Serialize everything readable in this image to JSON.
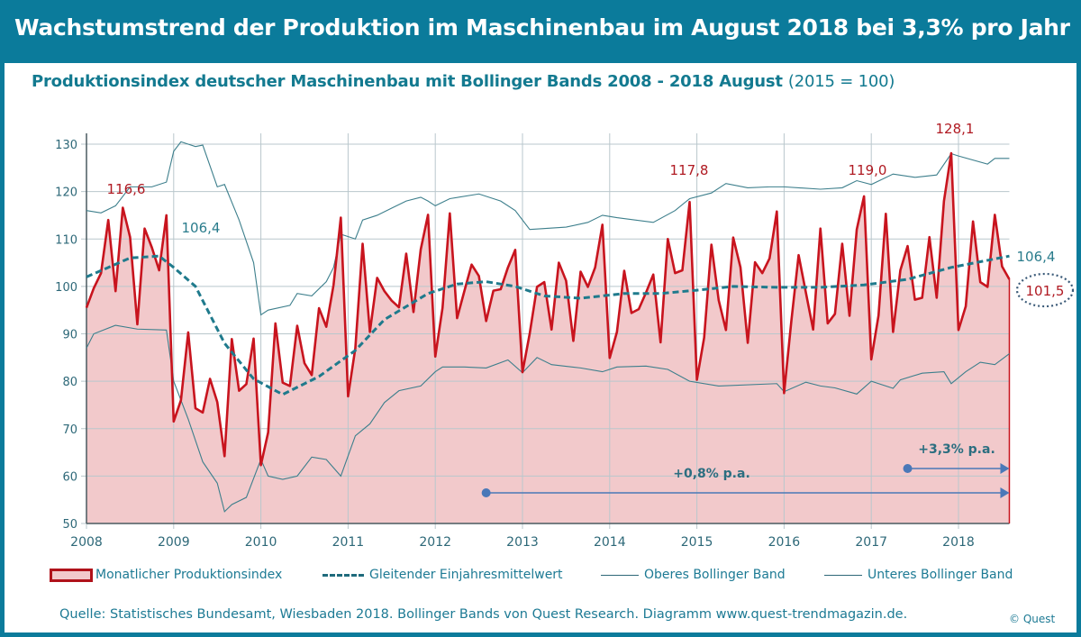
{
  "title": "Wachstumstrend der Produktion im Maschinenbau im August 2018 bei 3,3% pro Jahr",
  "subtitle": "Produktionsindex deutscher Maschinenbau mit Bollinger Bands 2008 - 2018 August",
  "subtitle_base": "(2015 = 100)",
  "source": "Quelle: Statistisches Bundesamt, Wiesbaden 2018. Bollinger Bands von Quest Research. Diagramm www.quest-trendmagazin.de.",
  "copyright": "© Quest",
  "colors": {
    "frame": "#0b7b9b",
    "index_line": "#c8141e",
    "index_fill": "#f2c9cb",
    "moving_average": "#1f7a8c",
    "bands": "#3d7f8c",
    "trend_arrow": "#4a78b8",
    "grid": "#b9c7cc"
  },
  "chart_data": {
    "type": "line",
    "title": "Produktionsindex deutscher Maschinenbau mit Bollinger Bands 2008 - 2018 August (2015 = 100)",
    "x_ticks": [
      "2008",
      "2009",
      "2010",
      "2011",
      "2012",
      "2013",
      "2014",
      "2015",
      "2016",
      "2017",
      "2018"
    ],
    "y_ticks": [
      50,
      60,
      70,
      80,
      90,
      100,
      110,
      120,
      130
    ],
    "ylim": [
      50,
      130
    ],
    "xlim": [
      "2008-01",
      "2018-08"
    ],
    "grid": true,
    "legend_placement": "bottom",
    "series": [
      {
        "name": "Monatlicher Produktionsindex",
        "style": "area-line",
        "start": "2008-01",
        "frequency": "monthly",
        "values": [
          95.5,
          99.6,
          102.8,
          114,
          99,
          116.6,
          110.4,
          92,
          112.2,
          108.2,
          103.4,
          115,
          71.5,
          76,
          90.3,
          74.3,
          73.4,
          80.5,
          75.6,
          64.2,
          88.9,
          78,
          79.4,
          89,
          62.3,
          69.2,
          92.2,
          79.7,
          79,
          91.7,
          83.8,
          81.3,
          95.4,
          91.5,
          100.3,
          114.5,
          76.8,
          87,
          109,
          90.4,
          101.8,
          99,
          97,
          95.6,
          106.9,
          94.6,
          107.8,
          115.1,
          85.2,
          95.5,
          115.4,
          93.3,
          99,
          104.6,
          102.2,
          92.7,
          99.1,
          99.4,
          104,
          107.7,
          81.9,
          90.1,
          99.9,
          100.9,
          90.9,
          105,
          101.2,
          88.5,
          103.1,
          99.9,
          104,
          113,
          84.9,
          90.4,
          103.3,
          94.4,
          95.2,
          98.7,
          102.5,
          88.2,
          110,
          102.8,
          103.4,
          117.8,
          80.3,
          89.2,
          108.8,
          97.1,
          90.8,
          110.3,
          104,
          88.1,
          105.1,
          102.8,
          105.9,
          115.8,
          77.5,
          92.7,
          106.6,
          98.7,
          90.9,
          112.2,
          92.2,
          94.2,
          109,
          93.8,
          112,
          119.0,
          84.6,
          93.9,
          115.3,
          90.4,
          103.4,
          108.5,
          97.2,
          97.6,
          110.4,
          97.6,
          118,
          128.1,
          90.8,
          95.8,
          113.7,
          100.9,
          99.9,
          115.1,
          104.2,
          101.5
        ]
      },
      {
        "name": "Gleitender Einjahresmittelwert",
        "style": "dashed",
        "points": [
          [
            "2008-01",
            102
          ],
          [
            "2008-04",
            104
          ],
          [
            "2008-07",
            106
          ],
          [
            "2008-11",
            106.4
          ],
          [
            "2009-01",
            104
          ],
          [
            "2009-04",
            100
          ],
          [
            "2009-08",
            88
          ],
          [
            "2009-12",
            80.5
          ],
          [
            "2010-04",
            77.2
          ],
          [
            "2010-09",
            81
          ],
          [
            "2011-02",
            86.5
          ],
          [
            "2011-06",
            93
          ],
          [
            "2011-12",
            98.5
          ],
          [
            "2012-04",
            100.5
          ],
          [
            "2012-08",
            101
          ],
          [
            "2012-12",
            100
          ],
          [
            "2013-04",
            98
          ],
          [
            "2013-09",
            97.5
          ],
          [
            "2014-03",
            98.5
          ],
          [
            "2014-08",
            98.5
          ],
          [
            "2015-01",
            99.2
          ],
          [
            "2015-06",
            100
          ],
          [
            "2015-12",
            99.8
          ],
          [
            "2016-06",
            99.8
          ],
          [
            "2016-12",
            100.3
          ],
          [
            "2017-06",
            101.5
          ],
          [
            "2017-12",
            104
          ],
          [
            "2018-05",
            105.5
          ],
          [
            "2018-08",
            106.4
          ]
        ]
      },
      {
        "name": "Oberes Bollinger Band",
        "style": "thin",
        "points": [
          [
            "2008-01",
            116
          ],
          [
            "2008-03",
            115.5
          ],
          [
            "2008-05",
            117
          ],
          [
            "2008-07",
            121
          ],
          [
            "2008-10",
            121
          ],
          [
            "2008-12",
            122
          ],
          [
            "2009-01",
            128.5
          ],
          [
            "2009-02",
            130.5
          ],
          [
            "2009-04",
            129.5
          ],
          [
            "2009-05",
            129.8
          ],
          [
            "2009-07",
            121
          ],
          [
            "2009-08",
            121.5
          ],
          [
            "2009-10",
            114
          ],
          [
            "2009-12",
            105
          ],
          [
            "2010-01",
            94
          ],
          [
            "2010-02",
            95
          ],
          [
            "2010-05",
            96
          ],
          [
            "2010-06",
            98.5
          ],
          [
            "2010-08",
            98
          ],
          [
            "2010-10",
            101
          ],
          [
            "2010-11",
            104
          ],
          [
            "2010-12",
            111
          ],
          [
            "2011-02",
            110
          ],
          [
            "2011-03",
            114
          ],
          [
            "2011-05",
            115
          ],
          [
            "2011-07",
            116.5
          ],
          [
            "2011-09",
            118
          ],
          [
            "2011-11",
            118.8
          ],
          [
            "2011-12",
            118
          ],
          [
            "2012-01",
            117
          ],
          [
            "2012-03",
            118.5
          ],
          [
            "2012-07",
            119.5
          ],
          [
            "2012-10",
            118
          ],
          [
            "2012-12",
            116
          ],
          [
            "2013-02",
            112
          ],
          [
            "2013-07",
            112.5
          ],
          [
            "2013-10",
            113.5
          ],
          [
            "2013-12",
            115
          ],
          [
            "2014-02",
            114.5
          ],
          [
            "2014-07",
            113.5
          ],
          [
            "2014-10",
            116
          ],
          [
            "2014-12",
            118.5
          ],
          [
            "2015-03",
            119.7
          ],
          [
            "2015-05",
            121.7
          ],
          [
            "2015-08",
            120.8
          ],
          [
            "2015-11",
            121
          ],
          [
            "2016-01",
            121
          ],
          [
            "2016-06",
            120.5
          ],
          [
            "2016-09",
            120.8
          ],
          [
            "2016-11",
            122.3
          ],
          [
            "2017-01",
            121.5
          ],
          [
            "2017-04",
            123.7
          ],
          [
            "2017-07",
            123
          ],
          [
            "2017-10",
            123.5
          ],
          [
            "2017-12",
            128
          ],
          [
            "2018-01",
            127.5
          ],
          [
            "2018-05",
            125.8
          ],
          [
            "2018-06",
            127
          ],
          [
            "2018-08",
            127
          ]
        ]
      },
      {
        "name": "Unteres Bollinger Band",
        "style": "thin",
        "points": [
          [
            "2008-01",
            87
          ],
          [
            "2008-02",
            90
          ],
          [
            "2008-05",
            91.8
          ],
          [
            "2008-08",
            91
          ],
          [
            "2008-12",
            90.8
          ],
          [
            "2009-01",
            80
          ],
          [
            "2009-03",
            72
          ],
          [
            "2009-05",
            63
          ],
          [
            "2009-07",
            58.5
          ],
          [
            "2009-08",
            52.5
          ],
          [
            "2009-09",
            54
          ],
          [
            "2009-11",
            55.5
          ],
          [
            "2010-01",
            63.5
          ],
          [
            "2010-02",
            60
          ],
          [
            "2010-04",
            59.3
          ],
          [
            "2010-06",
            60
          ],
          [
            "2010-08",
            64
          ],
          [
            "2010-10",
            63.5
          ],
          [
            "2010-12",
            60
          ],
          [
            "2011-02",
            68.5
          ],
          [
            "2011-04",
            71
          ],
          [
            "2011-06",
            75.5
          ],
          [
            "2011-08",
            78
          ],
          [
            "2011-11",
            79
          ],
          [
            "2012-01",
            82
          ],
          [
            "2012-02",
            83
          ],
          [
            "2012-05",
            83
          ],
          [
            "2012-08",
            82.8
          ],
          [
            "2012-11",
            84.5
          ],
          [
            "2013-01",
            81.8
          ],
          [
            "2013-03",
            85
          ],
          [
            "2013-05",
            83.5
          ],
          [
            "2013-09",
            82.8
          ],
          [
            "2013-12",
            82
          ],
          [
            "2014-02",
            83
          ],
          [
            "2014-06",
            83.2
          ],
          [
            "2014-09",
            82.5
          ],
          [
            "2014-12",
            80
          ],
          [
            "2015-04",
            79
          ],
          [
            "2015-12",
            79.5
          ],
          [
            "2016-01",
            77.8
          ],
          [
            "2016-04",
            79.8
          ],
          [
            "2016-06",
            79
          ],
          [
            "2016-08",
            78.6
          ],
          [
            "2016-11",
            77.3
          ],
          [
            "2017-01",
            80
          ],
          [
            "2017-04",
            78.5
          ],
          [
            "2017-05",
            80.3
          ],
          [
            "2017-08",
            81.7
          ],
          [
            "2017-11",
            82
          ],
          [
            "2017-12",
            79.5
          ],
          [
            "2018-02",
            82
          ],
          [
            "2018-04",
            84
          ],
          [
            "2018-06",
            83.5
          ],
          [
            "2018-08",
            85.8
          ]
        ]
      }
    ],
    "annotations": [
      {
        "text": "116,6",
        "date": "2008-06",
        "value": 116.6
      },
      {
        "text": "106,4",
        "date": "2008-11",
        "value": 106.4
      },
      {
        "text": "117,8",
        "date": "2014-12",
        "value": 117.8
      },
      {
        "text": "119,0",
        "date": "2016-12",
        "value": 119.0
      },
      {
        "text": "128,1",
        "date": "2017-12",
        "value": 128.1
      },
      {
        "text": "106,4",
        "date": "2018-08",
        "value": 106.4
      },
      {
        "text": "101,5",
        "date": "2018-08",
        "value": 101.5,
        "circled": true
      }
    ],
    "trends": [
      {
        "label": "+0,8% p.a.",
        "from": "2012-08",
        "to": "2018-08"
      },
      {
        "label": "+3,3% p.a.",
        "from": "2017-06",
        "to": "2018-08"
      }
    ]
  }
}
